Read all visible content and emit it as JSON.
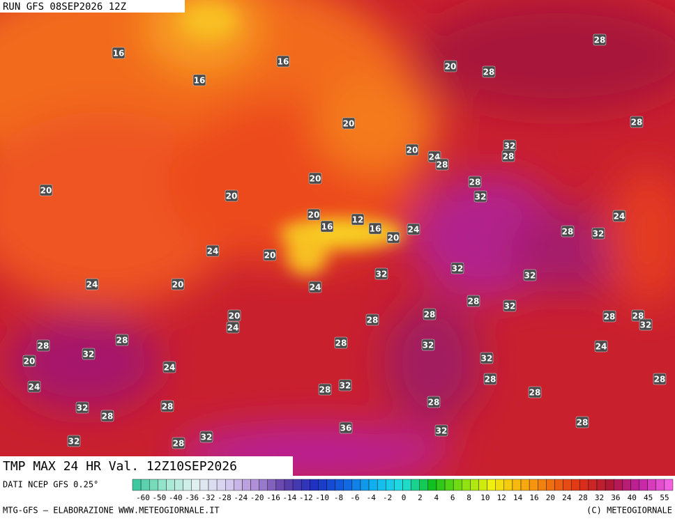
{
  "header": {
    "run": "RUN GFS 08SEP2026 12Z"
  },
  "map": {
    "title": "TMP MAX 24 HR Val. 12Z10SEP2026",
    "contour_labels": [
      "16",
      "16",
      "16",
      "20",
      "28",
      "28",
      "28",
      "20",
      "20",
      "24",
      "28",
      "32",
      "28",
      "20",
      "20",
      "20",
      "28",
      "32",
      "20",
      "16",
      "12",
      "16",
      "24",
      "20",
      "28",
      "32",
      "24",
      "24",
      "20",
      "32",
      "32",
      "32",
      "24",
      "20",
      "24",
      "28",
      "32",
      "20",
      "24",
      "28",
      "28",
      "28",
      "28",
      "32",
      "28",
      "28",
      "32",
      "20",
      "28",
      "32",
      "24",
      "24",
      "32",
      "28",
      "24",
      "28",
      "32",
      "28",
      "32",
      "28",
      "28",
      "28",
      "28",
      "32",
      "28",
      "32",
      "28",
      "32",
      "36"
    ]
  },
  "colorbar": {
    "ticks": [
      -60,
      -50,
      -40,
      -36,
      -32,
      -28,
      -24,
      -20,
      -16,
      -14,
      -12,
      -10,
      -8,
      -6,
      -4,
      -2,
      0,
      2,
      4,
      6,
      8,
      10,
      12,
      14,
      16,
      20,
      24,
      28,
      32,
      36,
      40,
      45,
      55
    ]
  },
  "footer": {
    "source": "DATI NCEP GFS 0.25°",
    "credit": "MTG-GFS — ELABORAZIONE WWW.METEOGIORNALE.IT",
    "copyright": "(C) METEOGIORNALE"
  }
}
